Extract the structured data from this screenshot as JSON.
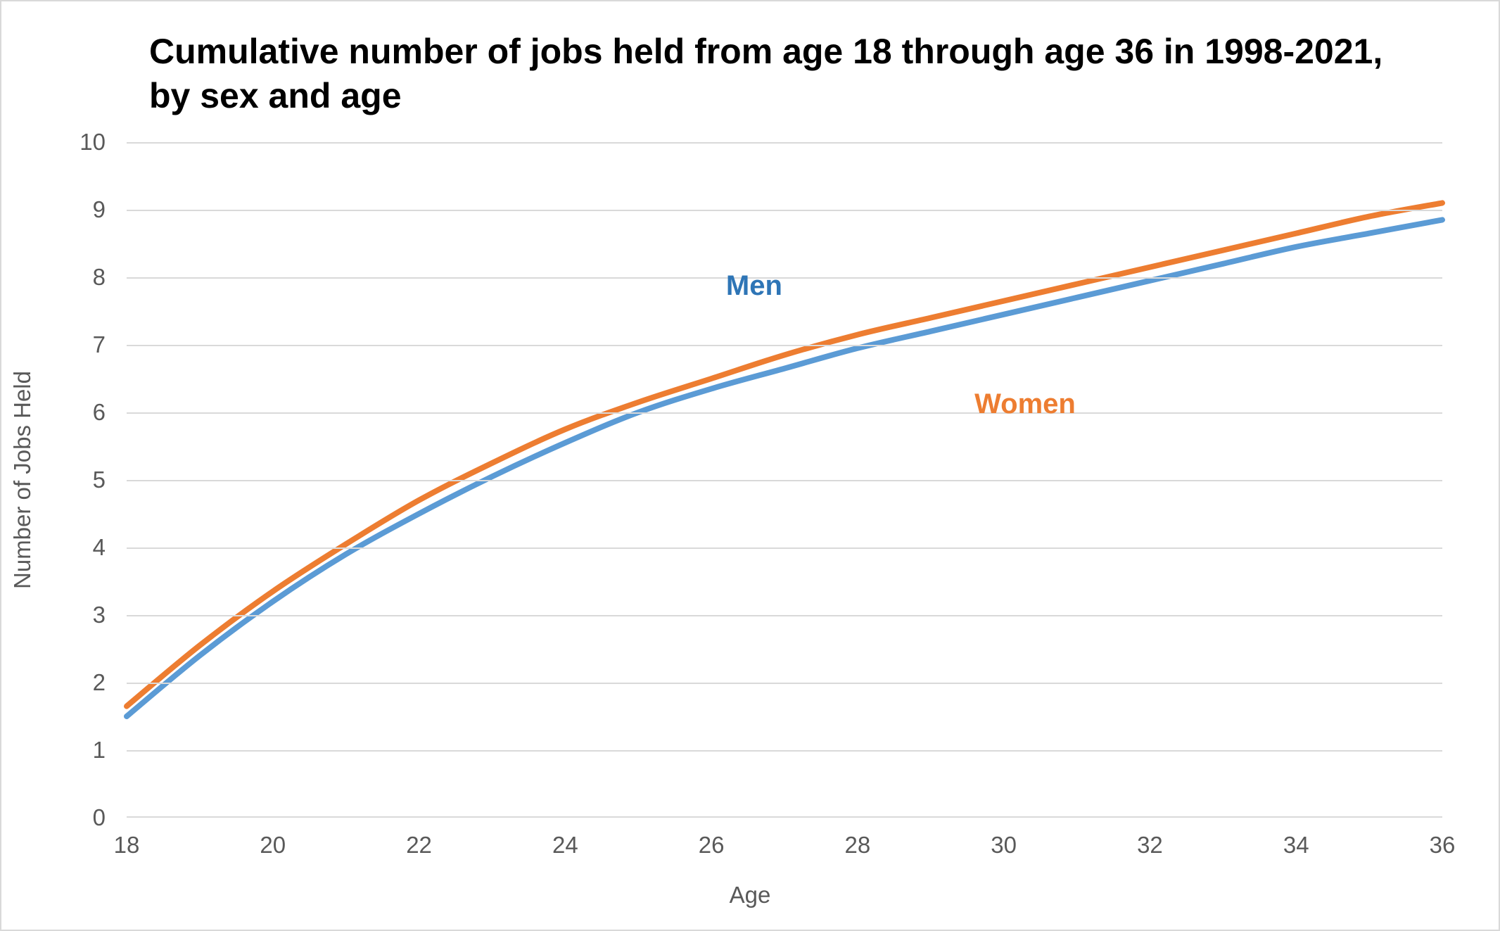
{
  "chart": {
    "type": "line",
    "title": "Cumulative number of jobs held from age 18 through age 36 in 1998-2021, by sex and age",
    "title_fontsize": 50,
    "title_fontweight": 700,
    "title_color": "#000000",
    "background_color": "#ffffff",
    "border_color": "#d9d9d9",
    "grid_color": "#d9d9d9",
    "axis_label_color": "#595959",
    "tick_label_fontsize": 33,
    "axis_title_fontsize": 33,
    "line_width": 8,
    "x": {
      "title": "Age",
      "min": 18,
      "max": 36,
      "ticks": [
        18,
        20,
        22,
        24,
        26,
        28,
        30,
        32,
        34,
        36
      ]
    },
    "y": {
      "title": "Number of Jobs Held",
      "min": 0,
      "max": 10,
      "ticks": [
        0,
        1,
        2,
        3,
        4,
        5,
        6,
        7,
        8,
        9,
        10
      ]
    },
    "series": [
      {
        "name": "Men",
        "label": "Men",
        "color": "#5b9bd5",
        "label_color": "#2e75b6",
        "label_pos": {
          "x": 26.2,
          "y": 8.1
        },
        "x": [
          18,
          19,
          20,
          21,
          22,
          23,
          24,
          25,
          26,
          27,
          28,
          29,
          30,
          31,
          32,
          33,
          34,
          35,
          36
        ],
        "y": [
          1.5,
          2.4,
          3.2,
          3.9,
          4.5,
          5.05,
          5.55,
          6.0,
          6.35,
          6.65,
          6.95,
          7.2,
          7.45,
          7.7,
          7.95,
          8.2,
          8.45,
          8.65,
          8.85
        ]
      },
      {
        "name": "Women",
        "label": "Women",
        "color": "#ed7d31",
        "label_color": "#ed7d31",
        "label_pos": {
          "x": 29.6,
          "y": 6.35
        },
        "x": [
          18,
          19,
          20,
          21,
          22,
          23,
          24,
          25,
          26,
          27,
          28,
          29,
          30,
          31,
          32,
          33,
          34,
          35,
          36
        ],
        "y": [
          1.65,
          2.55,
          3.35,
          4.05,
          4.7,
          5.25,
          5.75,
          6.15,
          6.5,
          6.85,
          7.15,
          7.4,
          7.65,
          7.9,
          8.15,
          8.4,
          8.65,
          8.9,
          9.1
        ]
      }
    ]
  }
}
